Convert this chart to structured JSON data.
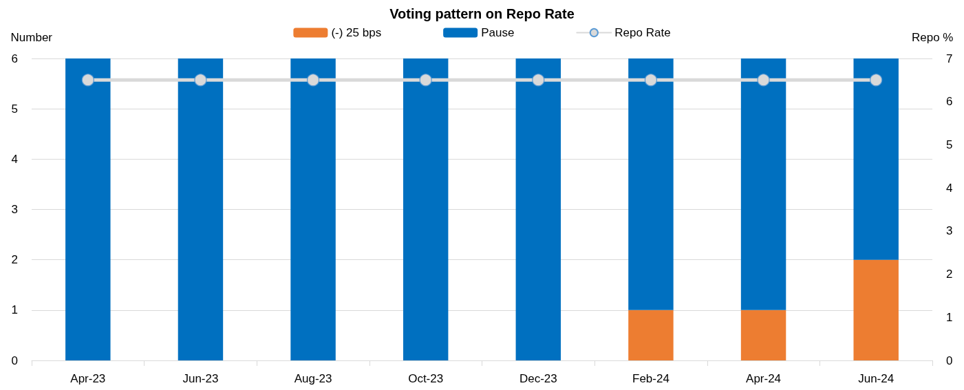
{
  "chart_data": {
    "type": "bar",
    "title": "Voting pattern on Repo Rate",
    "ylabel": "Number",
    "y2label": "Repo %",
    "categories": [
      "Apr-23",
      "Jun-23",
      "Aug-23",
      "Oct-23",
      "Dec-23",
      "Feb-24",
      "Apr-24",
      "Jun-24"
    ],
    "stacked": true,
    "series": [
      {
        "name": "(-) 25 bps",
        "color": "#ed7d31",
        "values": [
          0,
          0,
          0,
          0,
          0,
          1,
          1,
          2
        ]
      },
      {
        "name": "Pause",
        "color": "#0070c0",
        "values": [
          6,
          6,
          6,
          6,
          6,
          5,
          5,
          4
        ]
      },
      {
        "name": "Repo Rate",
        "type": "line",
        "axis": "y2",
        "color": "#d9d9d9",
        "marker": "circle",
        "line_style": "solid",
        "values": [
          6.5,
          6.5,
          6.5,
          6.5,
          6.5,
          6.5,
          6.5,
          6.5
        ]
      }
    ],
    "ylim": [
      0,
      6
    ],
    "yticks": [
      0,
      1,
      2,
      3,
      4,
      5,
      6
    ],
    "y2lim": [
      0,
      7
    ],
    "y2ticks": [
      0,
      1,
      2,
      3,
      4,
      5,
      6,
      7
    ],
    "grid": "y",
    "legend": "top"
  }
}
